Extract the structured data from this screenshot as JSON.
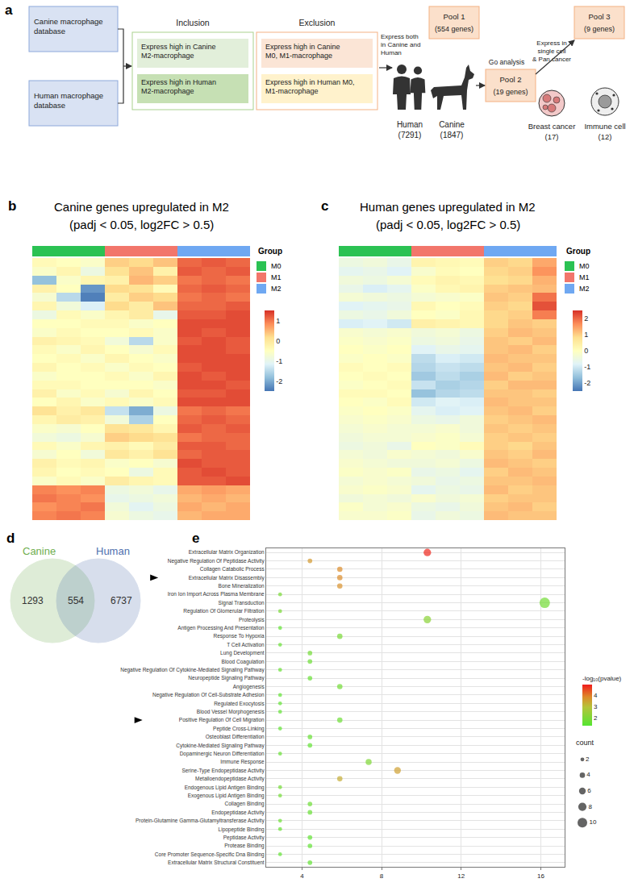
{
  "diagram": {
    "panel": "a",
    "databases": [
      "Canine macrophage database",
      "Human macrophage database"
    ],
    "inclusion": {
      "title": "Inclusion",
      "items": [
        "Express high in Canine M2-macrophage",
        "Express high in Human M2-macrophage"
      ]
    },
    "exclusion": {
      "title": "Exclusion",
      "items": [
        "Express high in Canine M0, M1-macrophage",
        "Express high in Human M0, M1-macrophage"
      ]
    },
    "steps": [
      "Express both in Canine and Human",
      "Go analysis",
      "Express in single cell & Pan cancer"
    ],
    "pools": [
      {
        "name": "Pool 1",
        "detail": "(554 genes)"
      },
      {
        "name": "Pool 2",
        "detail": "(19 genes)"
      },
      {
        "name": "Pool 3",
        "detail": "(9 genes)"
      }
    ],
    "species": [
      {
        "name": "Human",
        "detail": "(7291)"
      },
      {
        "name": "Canine",
        "detail": "(1847)"
      }
    ],
    "sources": [
      {
        "name": "Breast cancer",
        "detail": "(17)"
      },
      {
        "name": "Immune cell",
        "detail": "(12)"
      }
    ]
  },
  "chart_data": [
    {
      "type": "heatmap",
      "panel": "b",
      "title": "Canine genes upregulated in M2",
      "subtitle": "(padj < 0.05, log2FC > 0.5)",
      "tick_labels": false,
      "group_title": "Group",
      "groups": [
        {
          "name": "M0",
          "color": "#2bc253"
        },
        {
          "name": "M1",
          "color": "#f2766b"
        },
        {
          "name": "M2",
          "color": "#6fa8f2"
        }
      ],
      "columns": [
        "M0",
        "M0",
        "M0",
        "M1",
        "M1",
        "M1",
        "M2",
        "M2",
        "M2"
      ],
      "zlim": [
        -2.5,
        1.5
      ],
      "zticks": [
        -2,
        -1,
        0,
        1
      ],
      "cells": [
        [
          -0.4,
          -0.5,
          -0.6,
          0.3,
          0.2,
          0.4,
          1.1,
          1.2,
          1.1
        ],
        [
          -0.6,
          -0.3,
          -0.9,
          0.1,
          0.4,
          -0.2,
          1.2,
          1.1,
          1.2
        ],
        [
          -1.8,
          -0.6,
          -0.3,
          -0.2,
          0.5,
          0.3,
          1.0,
          1.1,
          1.0
        ],
        [
          -0.2,
          -0.5,
          -2.2,
          0.2,
          0.1,
          -0.4,
          1.1,
          1.2,
          1.1
        ],
        [
          -0.7,
          -1.5,
          -2.4,
          -0.1,
          0.3,
          0.2,
          1.0,
          1.1,
          1.0
        ],
        [
          -0.3,
          -0.8,
          -1.2,
          0.2,
          -0.1,
          0.4,
          1.1,
          1.1,
          1.2
        ],
        [
          -0.9,
          -0.4,
          -0.6,
          -0.3,
          -0.1,
          -1.0,
          1.2,
          1.2,
          1.3
        ],
        [
          -0.5,
          -0.5,
          -0.4,
          -0.4,
          -0.6,
          -0.5,
          1.3,
          1.3,
          1.3
        ],
        [
          -0.6,
          -0.4,
          -0.5,
          -0.5,
          -0.4,
          -0.6,
          1.3,
          1.2,
          1.3
        ],
        [
          -0.2,
          -0.3,
          -0.4,
          -0.8,
          -1.5,
          -0.6,
          1.2,
          1.3,
          1.2
        ],
        [
          -0.4,
          -0.6,
          -0.3,
          -0.5,
          -0.7,
          -0.4,
          1.3,
          1.3,
          1.2
        ],
        [
          -0.5,
          -0.4,
          -0.6,
          -0.3,
          -0.5,
          -0.6,
          1.3,
          1.3,
          1.3
        ],
        [
          -0.3,
          -0.5,
          -0.4,
          -0.6,
          -0.4,
          -0.5,
          1.2,
          1.3,
          1.3
        ],
        [
          -0.6,
          -0.5,
          -0.5,
          -0.4,
          -0.6,
          -0.3,
          1.3,
          1.2,
          1.3
        ],
        [
          -0.4,
          -0.4,
          -0.5,
          -0.5,
          -0.5,
          -0.6,
          1.3,
          1.3,
          1.2
        ],
        [
          -0.2,
          -0.6,
          -0.4,
          -0.7,
          -0.3,
          -0.5,
          1.2,
          1.2,
          1.3
        ],
        [
          -0.5,
          -0.3,
          -0.6,
          -0.4,
          -0.6,
          -0.4,
          1.3,
          1.3,
          1.3
        ],
        [
          0.1,
          -0.2,
          0.0,
          -1.4,
          -2.0,
          -0.9,
          1.0,
          1.1,
          1.0
        ],
        [
          -0.3,
          -0.1,
          -0.2,
          -0.8,
          -1.6,
          -0.5,
          1.1,
          1.2,
          1.1
        ],
        [
          -0.6,
          -0.7,
          -0.5,
          0.1,
          0.0,
          -0.3,
          1.2,
          1.1,
          1.2
        ],
        [
          -0.8,
          -0.9,
          -0.7,
          0.3,
          0.2,
          0.1,
          1.0,
          1.1,
          1.1
        ],
        [
          -0.4,
          -0.6,
          -0.3,
          -0.2,
          -0.4,
          -0.1,
          1.2,
          1.2,
          1.1
        ],
        [
          -0.7,
          -0.5,
          -0.8,
          0.0,
          -0.2,
          0.1,
          1.1,
          1.2,
          1.2
        ],
        [
          -0.2,
          -0.4,
          -0.3,
          -0.6,
          -0.5,
          -0.7,
          1.3,
          1.2,
          1.2
        ],
        [
          -0.3,
          -0.5,
          -0.4,
          -0.5,
          -0.9,
          -0.4,
          1.2,
          1.3,
          1.2
        ],
        [
          -0.6,
          -0.4,
          -0.6,
          -0.1,
          -0.3,
          -0.4,
          1.2,
          1.2,
          1.3
        ],
        [
          0.9,
          0.8,
          0.9,
          -0.9,
          -0.8,
          -1.0,
          0.6,
          0.7,
          0.6
        ],
        [
          1.0,
          0.9,
          0.8,
          -1.0,
          -0.9,
          -0.8,
          0.5,
          0.6,
          0.5
        ],
        [
          0.8,
          0.9,
          1.0,
          -0.8,
          -1.1,
          -0.9,
          0.6,
          0.5,
          0.6
        ],
        [
          0.9,
          1.0,
          0.9,
          -0.7,
          -0.9,
          -1.0,
          0.5,
          0.6,
          0.6
        ]
      ]
    },
    {
      "type": "heatmap",
      "panel": "c",
      "title": "Human genes upregulated in M2",
      "subtitle": "(padj < 0.05, log2FC > 0.5)",
      "tick_labels": false,
      "group_title": "Group",
      "groups": [
        {
          "name": "M0",
          "color": "#2bc253"
        },
        {
          "name": "M1",
          "color": "#f2766b"
        },
        {
          "name": "M2",
          "color": "#6fa8f2"
        }
      ],
      "columns": [
        "M0",
        "M0",
        "M0",
        "M1",
        "M1",
        "M1",
        "M2",
        "M2",
        "M2"
      ],
      "zlim": [
        -2.5,
        2.5
      ],
      "zticks": [
        -2,
        -1,
        0,
        1,
        2
      ],
      "cells": [
        [
          -0.5,
          -0.4,
          -0.6,
          0.3,
          0.2,
          0.1,
          1.0,
          0.9,
          1.4
        ],
        [
          -0.7,
          -0.6,
          -0.8,
          -0.2,
          0.1,
          0.0,
          0.9,
          1.0,
          1.6
        ],
        [
          -0.4,
          -0.5,
          -0.3,
          0.1,
          0.3,
          0.2,
          0.8,
          0.9,
          1.3
        ],
        [
          -0.6,
          -0.9,
          -0.7,
          -0.1,
          0.2,
          0.3,
          1.0,
          1.1,
          1.2
        ],
        [
          -0.3,
          -0.4,
          -0.5,
          -0.3,
          -0.2,
          -0.1,
          1.1,
          1.0,
          1.9
        ],
        [
          -0.8,
          -0.7,
          -0.6,
          0.2,
          0.0,
          0.1,
          1.0,
          0.9,
          2.2
        ],
        [
          -0.5,
          -0.6,
          -0.4,
          0.0,
          -0.1,
          0.2,
          0.9,
          1.0,
          1.8
        ],
        [
          -0.9,
          -0.8,
          -1.0,
          0.4,
          0.3,
          0.2,
          0.9,
          1.1,
          1.0
        ],
        [
          -0.2,
          -0.3,
          -0.2,
          -0.4,
          -0.3,
          -0.5,
          1.0,
          1.2,
          1.1
        ],
        [
          -0.1,
          -0.2,
          -0.1,
          -0.5,
          -0.4,
          -0.6,
          1.1,
          1.0,
          1.2
        ],
        [
          0.0,
          -0.1,
          0.0,
          -0.8,
          -0.6,
          -0.7,
          1.1,
          1.2,
          1.0
        ],
        [
          -0.1,
          0.0,
          -0.1,
          -1.2,
          -0.9,
          -1.0,
          1.2,
          1.1,
          1.1
        ],
        [
          0.1,
          0.0,
          0.1,
          -1.3,
          -1.1,
          -1.2,
          1.1,
          1.2,
          1.0
        ],
        [
          0.0,
          0.1,
          0.0,
          -1.5,
          -1.2,
          -1.4,
          1.2,
          1.0,
          1.1
        ],
        [
          -0.1,
          0.0,
          0.1,
          -1.1,
          -1.4,
          -1.3,
          1.0,
          1.2,
          1.2
        ],
        [
          0.1,
          0.1,
          0.0,
          -1.6,
          -1.3,
          -1.2,
          1.1,
          1.1,
          1.0
        ],
        [
          0.0,
          -0.1,
          0.1,
          -1.0,
          -0.8,
          -0.9,
          1.2,
          1.1,
          1.1
        ],
        [
          -0.1,
          0.0,
          -0.1,
          -0.7,
          -0.9,
          -0.8,
          1.1,
          1.2,
          1.0
        ],
        [
          -0.2,
          -0.1,
          -0.2,
          -0.5,
          -0.6,
          -0.4,
          1.0,
          1.1,
          1.2
        ],
        [
          -0.3,
          -0.2,
          -0.3,
          -0.3,
          -0.2,
          -0.4,
          1.1,
          1.0,
          1.1
        ],
        [
          -0.4,
          -0.3,
          -0.3,
          -0.2,
          -0.1,
          -0.3,
          1.0,
          1.1,
          1.0
        ],
        [
          -0.5,
          -0.4,
          -0.6,
          0.0,
          -0.1,
          0.1,
          1.0,
          0.9,
          1.1
        ],
        [
          -0.3,
          -0.4,
          -0.2,
          -0.3,
          -0.4,
          -0.2,
          1.1,
          1.0,
          1.2
        ],
        [
          -0.2,
          -0.3,
          -0.4,
          -0.4,
          -0.3,
          -0.5,
          1.2,
          1.1,
          1.0
        ],
        [
          -0.1,
          -0.2,
          -0.1,
          -0.6,
          -0.5,
          -0.7,
          1.0,
          1.2,
          1.1
        ],
        [
          -0.3,
          -0.2,
          -0.3,
          -0.4,
          -0.6,
          -0.5,
          1.1,
          1.1,
          1.2
        ],
        [
          -0.2,
          -0.1,
          -0.2,
          -0.7,
          -0.5,
          -0.6,
          1.2,
          1.0,
          1.1
        ],
        [
          -0.4,
          -0.3,
          -0.4,
          -0.2,
          -0.4,
          -0.3,
          1.0,
          1.1,
          1.1
        ],
        [
          -0.1,
          -0.3,
          -0.2,
          -0.5,
          -0.6,
          -0.4,
          1.1,
          1.2,
          1.0
        ],
        [
          -0.2,
          -0.2,
          -0.1,
          -0.6,
          -0.4,
          -0.5,
          1.2,
          1.1,
          1.1
        ]
      ]
    },
    {
      "type": "venn",
      "panel": "d",
      "sets": [
        {
          "name": "Canine",
          "color": "#6fae4f",
          "only": 1293
        },
        {
          "name": "Human",
          "color": "#4e6fae",
          "only": 6737
        }
      ],
      "overlap": 554
    },
    {
      "type": "dot",
      "panel": "e",
      "categories": [
        "Extracellular Matrix Organization",
        "Negative Regulation Of Peptidase Activity",
        "Collagen Catabolic Process",
        "Extracellular Matrix Disassembly",
        "Bone Mineralization",
        "Iron Ion Import Across Plasma Membrane",
        "Signal Transduction",
        "Regulation Of Glomerular Filtration",
        "Proteolysis",
        "Antigen Processing And Presentation",
        "Response To Hypoxia",
        "T Cell Activation",
        "Lung Development",
        "Blood Coagulation",
        "Negative Regulation Of Cytokine-Mediated Signaling Pathway",
        "Neuropeptide Signaling Pathway",
        "Angiogenesis",
        "Negative Regulation Of Cell-Substrate Adhesion",
        "Regulated Exocytosis",
        "Blood Vessel Morphogenesis",
        "Positive Regulation Of Cell Migration",
        "Peptide Cross-Linking",
        "Osteoblast Differentiation",
        "Cytokine-Mediated Signaling Pathway",
        "Dopaminergic Neuron Differentiation",
        "Immune Response",
        "Serine-Type Endopeptidase Activity",
        "Metalloendopeptidase Activity",
        "Endogenous Lipid Antigen Binding",
        "Exogenous Lipid Antigen Binding",
        "Collagen Binding",
        "Endopeptidase Activity",
        "Protein-Glutamine Gamma-Glutamyltransferase Activity",
        "Lipopeptide Binding",
        "Peptidase Activity",
        "Protease Binding",
        "Core Promoter Sequence-Specific Dna Binding",
        "Extracellular Matrix Structural Constituent"
      ],
      "values": [
        10.3,
        4.4,
        5.9,
        5.9,
        5.9,
        2.9,
        16.2,
        2.9,
        10.3,
        2.9,
        5.9,
        2.9,
        4.4,
        4.4,
        2.9,
        4.4,
        5.9,
        2.9,
        2.9,
        2.9,
        5.9,
        2.9,
        4.4,
        4.4,
        2.9,
        7.35,
        8.8,
        5.9,
        2.9,
        2.9,
        4.4,
        4.4,
        2.9,
        2.9,
        4.4,
        4.4,
        2.9,
        4.4
      ],
      "count": [
        7,
        3,
        4,
        4,
        4,
        2,
        11,
        2,
        7,
        2,
        4,
        2,
        3,
        3,
        2,
        3,
        4,
        2,
        2,
        2,
        4,
        2,
        3,
        3,
        2,
        5,
        6,
        4,
        2,
        2,
        3,
        3,
        2,
        2,
        3,
        3,
        2,
        3
      ],
      "neg_log10_pvalue": [
        4.8,
        3.6,
        3.8,
        3.8,
        3.7,
        1.9,
        1.8,
        1.9,
        2.2,
        1.5,
        1.9,
        1.6,
        1.8,
        1.7,
        1.6,
        1.6,
        1.8,
        1.5,
        1.5,
        1.5,
        1.7,
        1.5,
        1.6,
        1.5,
        1.6,
        2.0,
        3.5,
        3.3,
        1.8,
        1.8,
        1.7,
        1.6,
        1.7,
        1.6,
        1.5,
        1.5,
        1.5,
        1.5
      ],
      "xlim": [
        2.2,
        17.2
      ],
      "xticks": [
        4,
        8,
        12,
        16
      ],
      "grid": true,
      "color_title": "-log₁₀(pvalue)",
      "color_range": [
        1.3,
        4.9
      ],
      "color_ticks": [
        2,
        3,
        4
      ],
      "size_title": "count",
      "size_ticks": [
        2,
        4,
        6,
        8,
        10
      ],
      "highlighted": [
        "Extracellular Matrix Disassembly",
        "Positive Regulation Of Cell Migration"
      ]
    }
  ]
}
